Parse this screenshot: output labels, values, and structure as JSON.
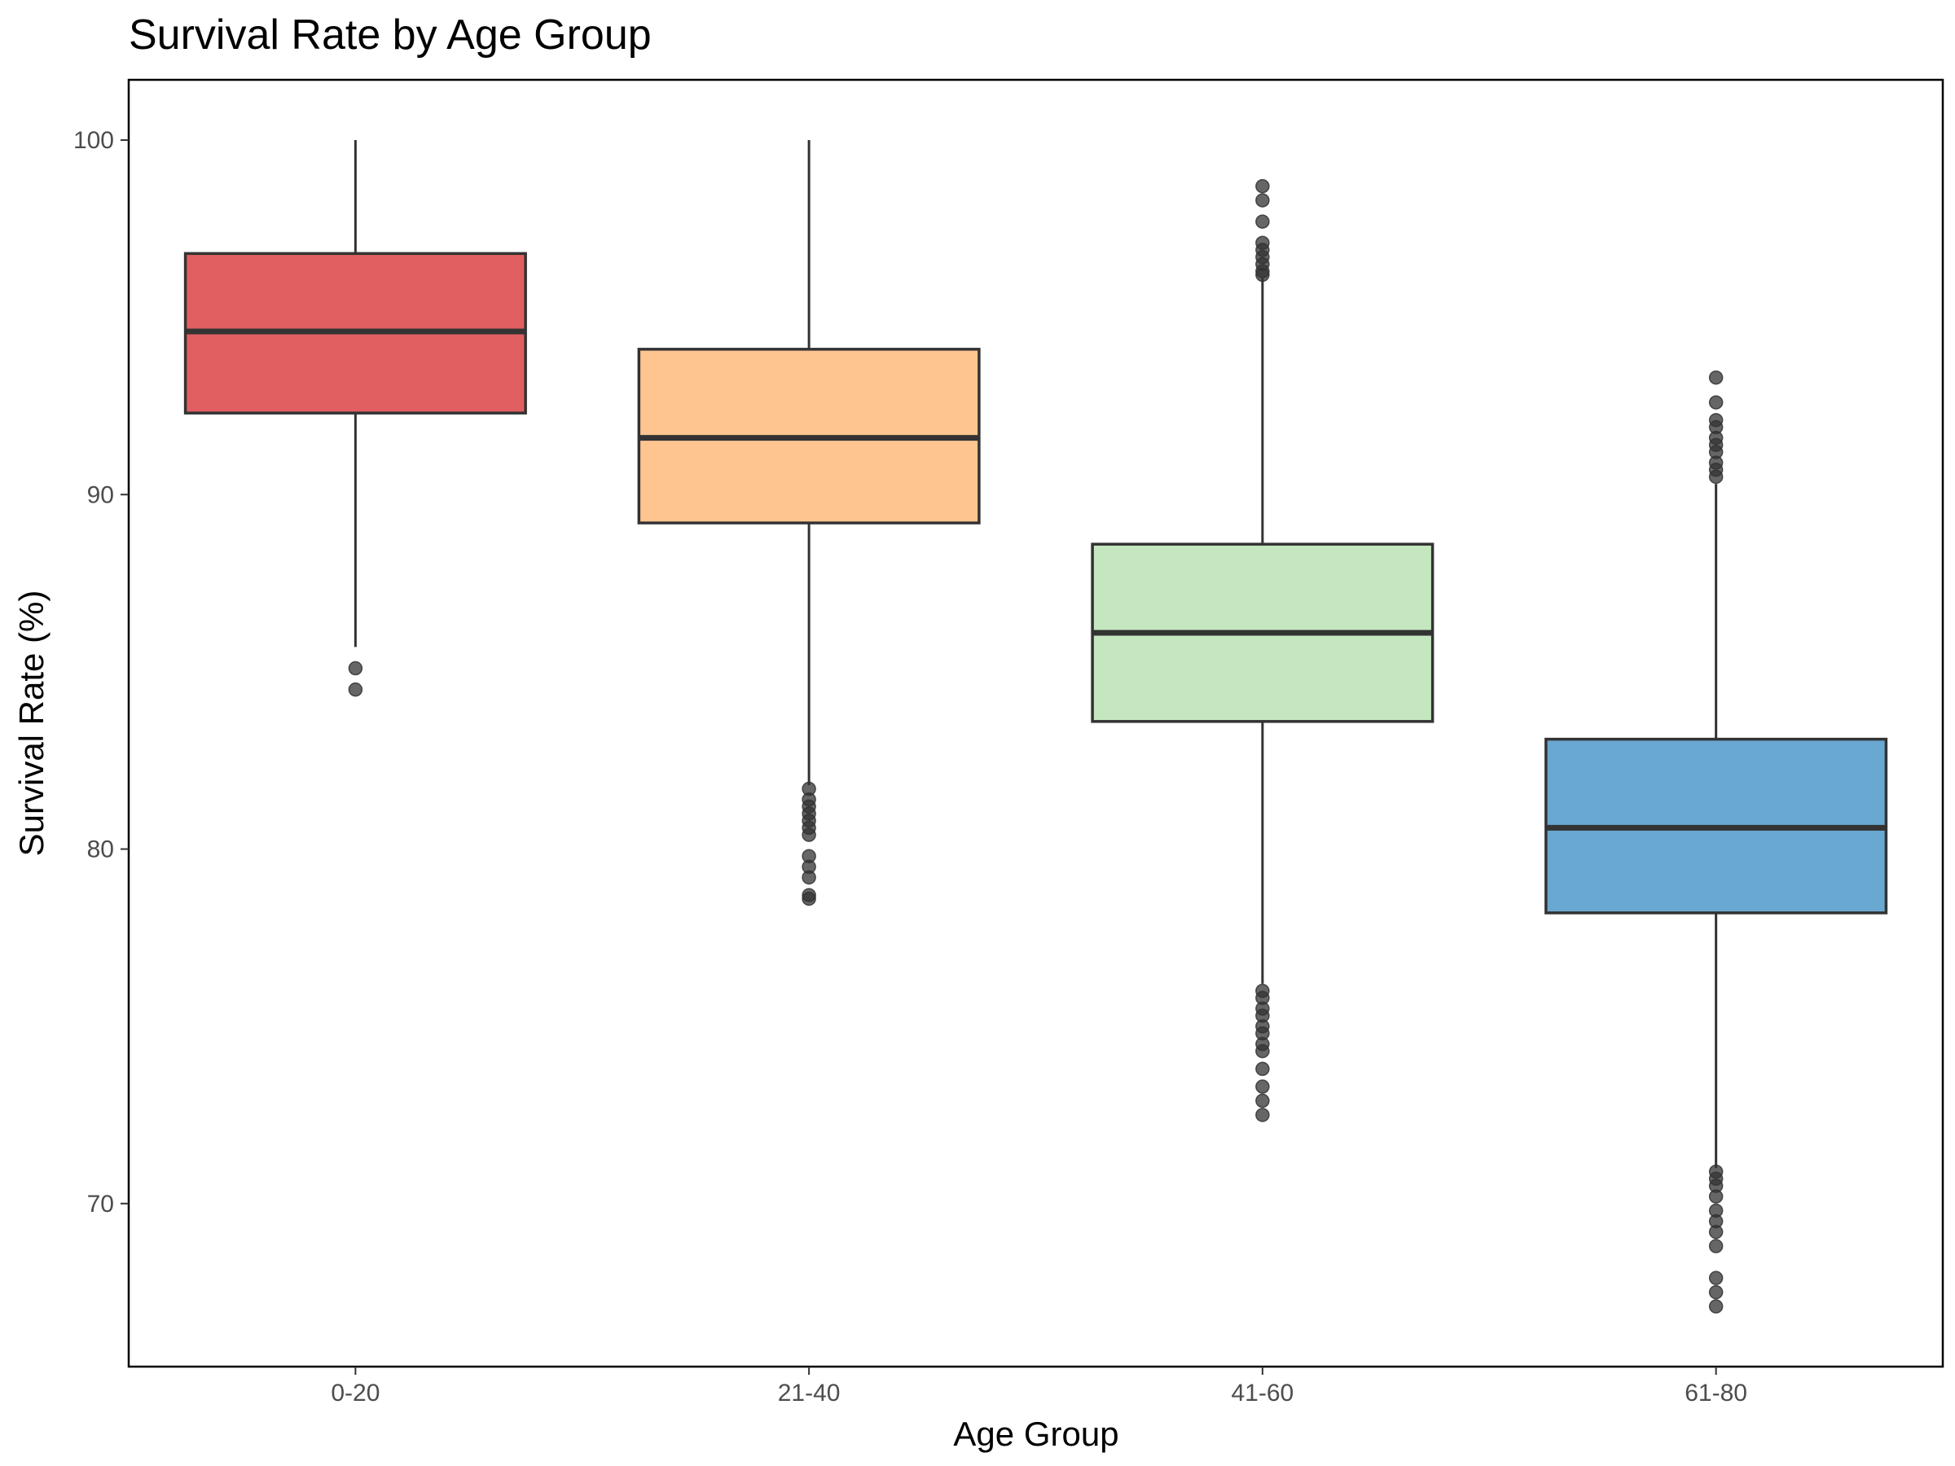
{
  "chart_data": {
    "type": "boxplot",
    "title": "Survival Rate by Age Group",
    "xlabel": "Age Group",
    "ylabel": "Survival Rate (%)",
    "ylim": [
      65.4,
      101.7
    ],
    "yticks": [
      70,
      80,
      90,
      100
    ],
    "categories": [
      "0-20",
      "21-40",
      "41-60",
      "61-80"
    ],
    "grid": false,
    "legend": "none",
    "boxes": [
      {
        "category": "0-20",
        "color": "#E15F61",
        "whisker_low": 85.7,
        "q1": 92.3,
        "median": 94.6,
        "q3": 96.8,
        "whisker_high": 100,
        "outliers": [
          85.1,
          84.5
        ]
      },
      {
        "category": "21-40",
        "color": "#FEC591",
        "whisker_low": 81.8,
        "q1": 89.2,
        "median": 91.6,
        "q3": 94.1,
        "whisker_high": 100,
        "outliers": [
          81.7,
          81.4,
          81.2,
          81.0,
          80.8,
          80.6,
          80.4,
          79.8,
          79.5,
          79.2,
          78.7,
          78.6
        ]
      },
      {
        "category": "41-60",
        "color": "#C5E7C0",
        "whisker_low": 76.2,
        "q1": 83.6,
        "median": 86.1,
        "q3": 88.6,
        "whisker_high": 96.1,
        "outliers": [
          98.7,
          98.3,
          97.7,
          97.1,
          96.9,
          96.7,
          96.5,
          96.3,
          96.2,
          76.0,
          75.8,
          75.5,
          75.3,
          75.0,
          74.8,
          74.5,
          74.3,
          73.8,
          73.3,
          72.9,
          72.5
        ]
      },
      {
        "category": "61-80",
        "color": "#69A8D0",
        "whisker_low": 71.0,
        "q1": 78.2,
        "median": 80.6,
        "q3": 83.1,
        "whisker_high": 90.3,
        "outliers": [
          93.3,
          92.6,
          92.1,
          91.9,
          91.6,
          91.4,
          91.2,
          90.9,
          90.7,
          90.5,
          70.9,
          70.7,
          70.5,
          70.2,
          69.8,
          69.5,
          69.2,
          68.8,
          67.9,
          67.5,
          67.1
        ]
      }
    ]
  }
}
